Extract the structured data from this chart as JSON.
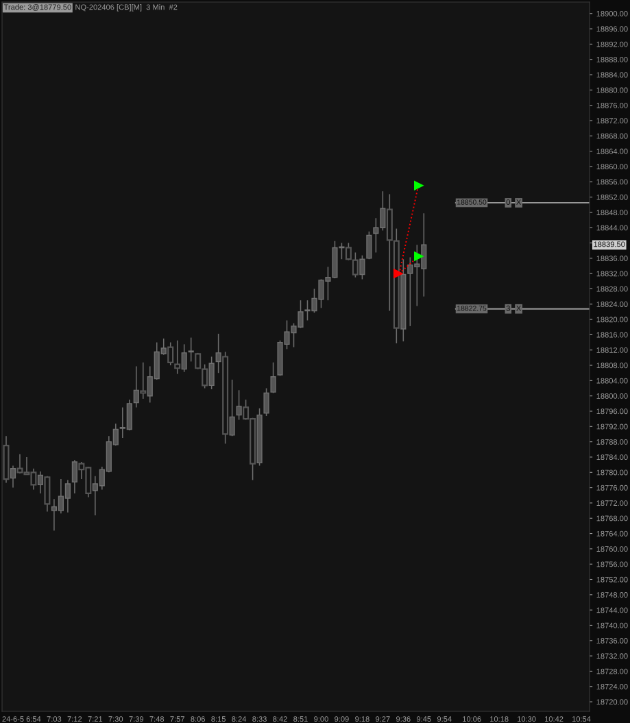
{
  "chart_data": {
    "type": "candlestick",
    "title": "Trade: 3@18779.50",
    "subtitle": "NQ-202406 [CB][M]  3 Min  #2",
    "xlim": [
      6.67,
      10.96
    ],
    "ylim": [
      18717.5,
      18903
    ],
    "xticks": [
      {
        "value": 6.75,
        "label": "24-6-5"
      },
      {
        "value": 6.9,
        "label": "6:54"
      },
      {
        "value": 7.05,
        "label": "7:03"
      },
      {
        "value": 7.2,
        "label": "7:12"
      },
      {
        "value": 7.35,
        "label": "7:21"
      },
      {
        "value": 7.5,
        "label": "7:30"
      },
      {
        "value": 7.65,
        "label": "7:39"
      },
      {
        "value": 7.8,
        "label": "7:48"
      },
      {
        "value": 7.95,
        "label": "7:57"
      },
      {
        "value": 8.1,
        "label": "8:06"
      },
      {
        "value": 8.25,
        "label": "8:15"
      },
      {
        "value": 8.4,
        "label": "8:24"
      },
      {
        "value": 8.55,
        "label": "8:33"
      },
      {
        "value": 8.7,
        "label": "8:42"
      },
      {
        "value": 8.85,
        "label": "8:51"
      },
      {
        "value": 9.0,
        "label": "9:00"
      },
      {
        "value": 9.15,
        "label": "9:09"
      },
      {
        "value": 9.3,
        "label": "9:18"
      },
      {
        "value": 9.45,
        "label": "9:27"
      },
      {
        "value": 9.6,
        "label": "9:36"
      },
      {
        "value": 9.75,
        "label": "9:45"
      },
      {
        "value": 9.9,
        "label": "9:54"
      },
      {
        "value": 10.1,
        "label": "10:06"
      },
      {
        "value": 10.3,
        "label": "10:18"
      },
      {
        "value": 10.5,
        "label": "10:30"
      },
      {
        "value": 10.7,
        "label": "10:42"
      },
      {
        "value": 10.9,
        "label": "10:54"
      }
    ],
    "yticks": [
      {
        "value": 18720,
        "label": "18720.00"
      },
      {
        "value": 18724,
        "label": "18724.00"
      },
      {
        "value": 18728,
        "label": "18728.00"
      },
      {
        "value": 18732,
        "label": "18732.00"
      },
      {
        "value": 18736,
        "label": "18736.00"
      },
      {
        "value": 18740,
        "label": "18740.00"
      },
      {
        "value": 18744,
        "label": "18744.00"
      },
      {
        "value": 18748,
        "label": "18748.00"
      },
      {
        "value": 18752,
        "label": "18752.00"
      },
      {
        "value": 18756,
        "label": "18756.00"
      },
      {
        "value": 18760,
        "label": "18760.00"
      },
      {
        "value": 18764,
        "label": "18764.00"
      },
      {
        "value": 18768,
        "label": "18768.00"
      },
      {
        "value": 18772,
        "label": "18772.00"
      },
      {
        "value": 18776,
        "label": "18776.00"
      },
      {
        "value": 18780,
        "label": "18780.00"
      },
      {
        "value": 18784,
        "label": "18784.00"
      },
      {
        "value": 18788,
        "label": "18788.00"
      },
      {
        "value": 18792,
        "label": "18792.00"
      },
      {
        "value": 18796,
        "label": "18796.00"
      },
      {
        "value": 18800,
        "label": "18800.00"
      },
      {
        "value": 18804,
        "label": "18804.00"
      },
      {
        "value": 18808,
        "label": "18808.00"
      },
      {
        "value": 18812,
        "label": "18812.00"
      },
      {
        "value": 18816,
        "label": "18816.00"
      },
      {
        "value": 18820,
        "label": "18820.00"
      },
      {
        "value": 18824,
        "label": "18824.00"
      },
      {
        "value": 18828,
        "label": "18828.00"
      },
      {
        "value": 18832,
        "label": "18832.00"
      },
      {
        "value": 18836,
        "label": "18836.00"
      },
      {
        "value": 18840,
        "label": null
      },
      {
        "value": 18844,
        "label": "18844.00"
      },
      {
        "value": 18848,
        "label": "18848.00"
      },
      {
        "value": 18852,
        "label": "18852.00"
      },
      {
        "value": 18856,
        "label": "18856.00"
      },
      {
        "value": 18860,
        "label": "18860.00"
      },
      {
        "value": 18864,
        "label": "18864.00"
      },
      {
        "value": 18868,
        "label": "18868.00"
      },
      {
        "value": 18872,
        "label": "18872.00"
      },
      {
        "value": 18876,
        "label": "18876.00"
      },
      {
        "value": 18880,
        "label": "18880.00"
      },
      {
        "value": 18884,
        "label": "18884.00"
      },
      {
        "value": 18888,
        "label": "18888.00"
      },
      {
        "value": 18892,
        "label": "18892.00"
      },
      {
        "value": 18896,
        "label": "18896.00"
      },
      {
        "value": 18900,
        "label": "18900.00"
      }
    ],
    "grid": false,
    "series": [
      {
        "color": "#555555",
        "x": [
          6.7,
          6.75,
          6.8,
          6.85,
          6.9,
          6.95,
          7.0,
          7.05,
          7.1,
          7.15,
          7.2,
          7.25,
          7.3,
          7.35,
          7.4,
          7.45,
          7.5,
          7.55,
          7.6,
          7.65,
          7.7,
          7.75,
          7.8,
          7.85,
          7.9,
          7.95,
          8.0,
          8.05,
          8.1,
          8.15,
          8.2,
          8.25,
          8.3,
          8.35,
          8.4,
          8.45,
          8.5,
          8.55,
          8.6,
          8.65,
          8.7,
          8.75,
          8.8,
          8.85,
          8.9,
          8.95,
          9.0,
          9.05,
          9.1,
          9.15,
          9.2,
          9.25,
          9.3,
          9.35,
          9.4,
          9.45,
          9.5,
          9.55,
          9.6,
          9.65,
          9.7,
          9.75
        ],
        "ohlc": [
          [
            18787.0,
            18789.5,
            18777.25,
            18778.25
          ],
          [
            18778.5,
            18781.75,
            18776.0,
            18781.0
          ],
          [
            18781.0,
            18784.75,
            18779.75,
            18780.0
          ],
          [
            18780.0,
            18784.0,
            18779.5,
            18779.5
          ],
          [
            18780.0,
            18781.0,
            18775.5,
            18776.75
          ],
          [
            18776.75,
            18780.25,
            18774.5,
            18779.25
          ],
          [
            18778.75,
            18779.0,
            18769.75,
            18771.75
          ],
          [
            18770.0,
            18773.0,
            18764.75,
            18771.0
          ],
          [
            18770.0,
            18778.25,
            18769.25,
            18773.75
          ],
          [
            18773.25,
            18778.0,
            18769.5,
            18777.0
          ],
          [
            18777.5,
            18783.25,
            18774.5,
            18782.75
          ],
          [
            18782.25,
            18782.75,
            18778.25,
            18780.75
          ],
          [
            18781.25,
            18781.5,
            18773.5,
            18774.5
          ],
          [
            18775.25,
            18779.0,
            18768.75,
            18777.0
          ],
          [
            18776.5,
            18781.5,
            18775.5,
            18780.75
          ],
          [
            18780.25,
            18789.5,
            18780.0,
            18788.0
          ],
          [
            18787.25,
            18792.75,
            18787.0,
            18791.25
          ],
          [
            18791.5,
            18797.0,
            18789.0,
            18791.5
          ],
          [
            18791.25,
            18799.0,
            18791.0,
            18798.0
          ],
          [
            18798.25,
            18807.75,
            18797.0,
            18801.5
          ],
          [
            18801.25,
            18808.75,
            18799.25,
            18800.75
          ],
          [
            18800.0,
            18807.75,
            18798.25,
            18805.0
          ],
          [
            18804.5,
            18814.0,
            18804.25,
            18811.5
          ],
          [
            18811.0,
            18815.0,
            18810.75,
            18812.5
          ],
          [
            18812.75,
            18814.0,
            18808.0,
            18808.75
          ],
          [
            18808.25,
            18814.5,
            18805.75,
            18807.25
          ],
          [
            18807.0,
            18813.5,
            18806.25,
            18811.25
          ],
          [
            18811.5,
            18815.25,
            18809.0,
            18811.5
          ],
          [
            18811.0,
            18811.25,
            18807.0,
            18807.25
          ],
          [
            18807.0,
            18808.25,
            18802.0,
            18802.75
          ],
          [
            18802.75,
            18810.25,
            18801.75,
            18808.5
          ],
          [
            18809.0,
            18816.25,
            18806.0,
            18811.25
          ],
          [
            18810.25,
            18811.5,
            18787.5,
            18790.0
          ],
          [
            18789.75,
            18804.25,
            18789.5,
            18794.5
          ],
          [
            18795.0,
            18801.5,
            18793.75,
            18797.25
          ],
          [
            18797.0,
            18799.0,
            18793.75,
            18794.0
          ],
          [
            18794.0,
            18794.25,
            18778.0,
            18782.25
          ],
          [
            18782.5,
            18796.75,
            18781.75,
            18795.0
          ],
          [
            18795.5,
            18802.0,
            18794.75,
            18800.75
          ],
          [
            18801.0,
            18808.75,
            18800.75,
            18805.0
          ],
          [
            18805.5,
            18814.5,
            18805.25,
            18814.0
          ],
          [
            18813.5,
            18819.75,
            18812.25,
            18816.75
          ],
          [
            18816.5,
            18819.0,
            18812.75,
            18818.25
          ],
          [
            18818.0,
            18825.0,
            18817.75,
            18822.0
          ],
          [
            18822.25,
            18825.0,
            18819.75,
            18822.25
          ],
          [
            18822.25,
            18828.0,
            18821.75,
            18825.5
          ],
          [
            18825.25,
            18830.5,
            18823.0,
            18830.25
          ],
          [
            18830.0,
            18833.75,
            18825.0,
            18831.0
          ],
          [
            18831.0,
            18840.5,
            18830.75,
            18838.75
          ],
          [
            18838.75,
            18840.0,
            18835.75,
            18838.75
          ],
          [
            18838.75,
            18840.0,
            18835.5,
            18835.75
          ],
          [
            18835.5,
            18837.5,
            18831.0,
            18831.75
          ],
          [
            18831.75,
            18836.75,
            18830.5,
            18835.75
          ],
          [
            18836.0,
            18843.0,
            18835.75,
            18842.0
          ],
          [
            18842.5,
            18846.5,
            18837.5,
            18844.0
          ],
          [
            18844.0,
            18853.5,
            18843.25,
            18849.0
          ],
          [
            18848.75,
            18852.75,
            18822.25,
            18840.75
          ],
          [
            18840.5,
            18843.75,
            18813.75,
            18817.75
          ],
          [
            18817.5,
            18835.75,
            18814.25,
            18831.75
          ],
          [
            18832.0,
            18836.25,
            18818.25,
            18834.25
          ],
          [
            18833.75,
            18839.5,
            18823.5,
            18834.5
          ],
          [
            18833.25,
            18847.75,
            18826.0,
            18839.5
          ]
        ]
      },
      {
        "type": "line",
        "color": "#ff0000",
        "line_style": "dotted",
        "marker": "none",
        "x": [
          9.57,
          9.71
        ],
        "values": [
          18832,
          18855
        ]
      },
      {
        "type": "line",
        "color": "#ff0000",
        "line_style": "dotted",
        "marker": "none",
        "x": [
          9.57,
          9.71
        ],
        "values": [
          18832,
          18836.5
        ]
      },
      {
        "type": "scatter",
        "color": "#ff0000",
        "marker": "triangle",
        "x": [
          9.565
        ],
        "values": [
          18832
        ]
      },
      {
        "type": "scatter",
        "color": "#00ff00",
        "marker": "triangle",
        "x": [
          9.715,
          9.715
        ],
        "values": [
          18855,
          18836.5
        ]
      }
    ],
    "ref_lines": [
      {
        "axis": "y",
        "value": 18850.5,
        "label": "18850.50",
        "color": "#9a9a9a"
      },
      {
        "axis": "y",
        "value": 18822.75,
        "label": "18822.75",
        "color": "#9a9a9a"
      }
    ],
    "annotations": [
      {
        "text": "0",
        "y": 18850.5
      },
      {
        "text": "X",
        "y": 18850.5
      },
      {
        "text": "3",
        "y": 18822.75
      },
      {
        "text": "X",
        "y": 18822.75
      },
      "18839.50"
    ]
  }
}
